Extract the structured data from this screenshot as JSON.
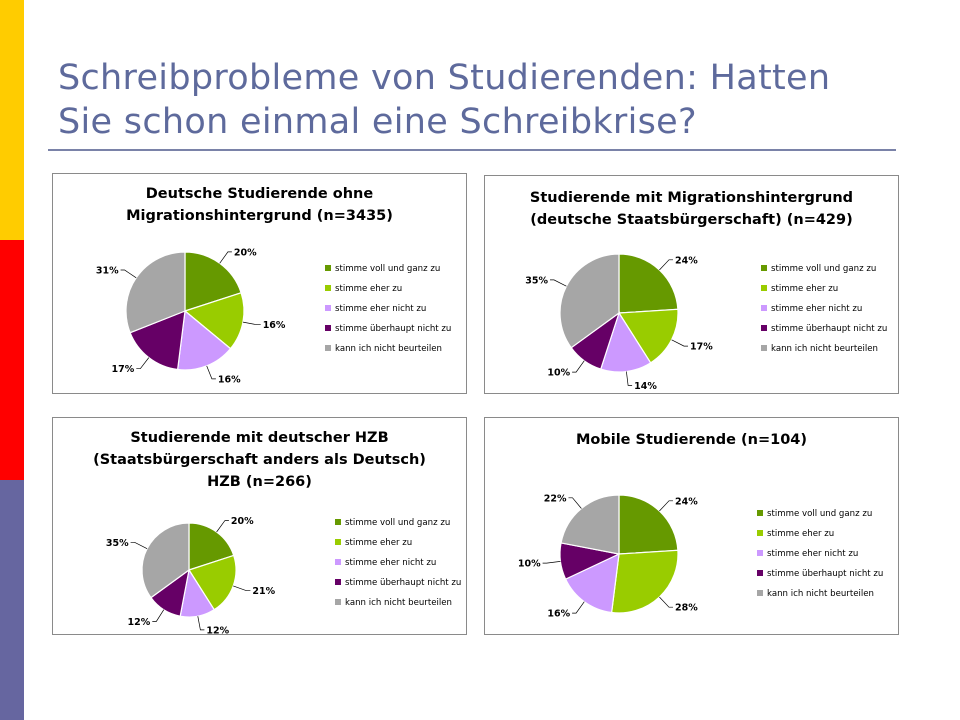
{
  "slide": {
    "title_line1": "Schreibprobleme von Studierenden: Hatten",
    "title_line2": "Sie schon einmal eine Schreibkrise?"
  },
  "colors": {
    "accent_bar_top": "#ffcc00",
    "accent_bar_middle": "#ff0000",
    "accent_bar_bottom": "#6666a0",
    "title": "#5e6a9c"
  },
  "legend_categories": [
    "stimme voll und ganz zu",
    "stimme eher zu",
    "stimme eher nicht zu",
    "stimme überhaupt nicht zu",
    "kann ich nicht beurteilen"
  ],
  "slice_colors": [
    "#669900",
    "#99cc00",
    "#cc99ff",
    "#660066",
    "#a6a6a6"
  ],
  "chart_data": [
    {
      "type": "pie",
      "title_lines": [
        "Deutsche Studierende ohne",
        "Migrationshintergrund (n=3435)"
      ],
      "categories": [
        "stimme voll und ganz zu",
        "stimme eher zu",
        "stimme eher nicht zu",
        "stimme überhaupt nicht zu",
        "kann ich nicht beurteilen"
      ],
      "values": [
        20,
        16,
        16,
        17,
        31
      ],
      "labels": [
        "20%",
        "16%",
        "16%",
        "17%",
        "31%"
      ],
      "legend": "right"
    },
    {
      "type": "pie",
      "title_lines": [
        "Studierende mit Migrationshintergrund",
        "(deutsche Staatsbürgerschaft) (n=429)"
      ],
      "categories": [
        "stimme voll und ganz zu",
        "stimme eher zu",
        "stimme eher nicht zu",
        "stimme überhaupt nicht zu",
        "kann ich nicht beurteilen"
      ],
      "values": [
        24,
        17,
        14,
        10,
        35
      ],
      "labels": [
        "24%",
        "17%",
        "14%",
        "10%",
        "35%"
      ],
      "legend": "right"
    },
    {
      "type": "pie",
      "title_lines": [
        "Studierende mit deutscher HZB",
        "(Staatsbürgerschaft anders als Deutsch)",
        "HZB (n=266)"
      ],
      "categories": [
        "stimme voll und ganz zu",
        "stimme eher zu",
        "stimme eher nicht zu",
        "stimme überhaupt nicht zu",
        "kann ich nicht beurteilen"
      ],
      "values": [
        20,
        21,
        12,
        12,
        35
      ],
      "labels": [
        "20%",
        "21%",
        "12%",
        "12%",
        "35%"
      ],
      "legend": "right"
    },
    {
      "type": "pie",
      "title_lines": [
        "Mobile Studierende (n=104)"
      ],
      "categories": [
        "stimme voll und ganz zu",
        "stimme eher zu",
        "stimme eher nicht zu",
        "stimme überhaupt nicht zu",
        "kann ich nicht beurteilen"
      ],
      "values": [
        24,
        28,
        16,
        10,
        22
      ],
      "labels": [
        "24%",
        "28%",
        "16%",
        "10%",
        "22%"
      ],
      "legend": "right"
    }
  ]
}
